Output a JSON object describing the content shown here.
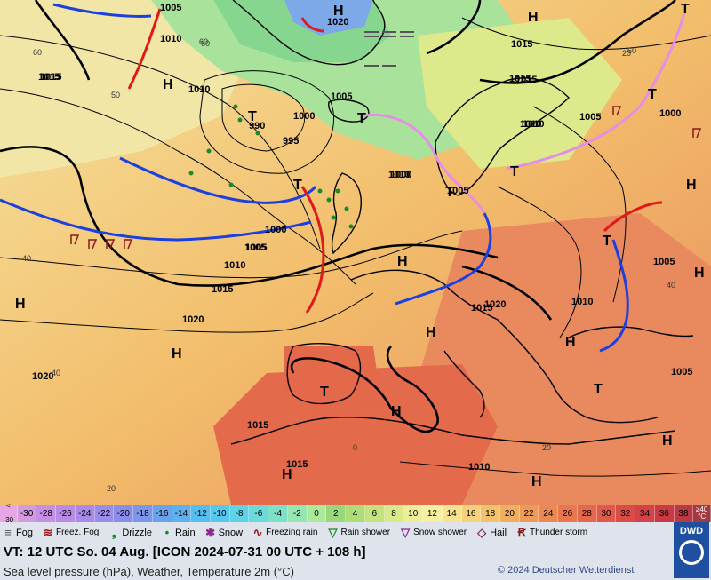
{
  "map": {
    "isobar_labels": [
      "1005",
      "1010",
      "1020",
      "1015",
      "1015",
      "1010",
      "1005",
      "1000",
      "995",
      "990",
      "1020",
      "1015",
      "1010",
      "1005",
      "1000",
      "1000",
      "1005",
      "1010",
      "1015",
      "1020",
      "1020",
      "1015",
      "1010",
      "1015",
      "1015",
      "1005",
      "1010",
      "1005",
      "1015",
      "1010",
      "1005",
      "1010",
      "1000",
      "1005",
      "1015"
    ],
    "centers": [
      "H",
      "H",
      "H",
      "H",
      "H",
      "H",
      "H",
      "H",
      "H",
      "H",
      "H",
      "H",
      "H",
      "H",
      "T",
      "T",
      "T",
      "T",
      "T",
      "T",
      "T",
      "T",
      "T",
      "T"
    ],
    "temp_labels": [
      "60",
      "60",
      "50",
      "40",
      "40",
      "20",
      "20",
      "0",
      "20",
      "40",
      "60",
      "60"
    ],
    "colors": {
      "fog_sea": "#bfeacd",
      "cold_front": "#1c3fe0",
      "warm_front": "#e01818",
      "occlusion": "#e68de8",
      "land_border": "#000000"
    }
  },
  "scale": {
    "first": [
      "<",
      "-30"
    ],
    "values": [
      "-30",
      "-28",
      "-26",
      "-24",
      "-22",
      "-20",
      "-18",
      "-16",
      "-14",
      "-12",
      "-10",
      "-8",
      "-6",
      "-4",
      "-2",
      "0",
      "2",
      "4",
      "6",
      "8",
      "10",
      "12",
      "14",
      "16",
      "18",
      "20",
      "22",
      "24",
      "26",
      "28",
      "30",
      "32",
      "34",
      "36",
      "38"
    ],
    "last": [
      "≥40",
      "°C"
    ],
    "colors": [
      "#d29be0",
      "#c58fe4",
      "#b88be6",
      "#a88ae8",
      "#9b8ce8",
      "#8a8ee8",
      "#7a97ea",
      "#6aa3ec",
      "#5eb0ee",
      "#56bdf0",
      "#56c8ee",
      "#5ed2e6",
      "#6cdad8",
      "#7ee0c6",
      "#96e6b2",
      "#aaea9a",
      "#9ad67a",
      "#aedd78",
      "#c4e37e",
      "#dae98a",
      "#ecef98",
      "#f6f0a0",
      "#f7e28e",
      "#f6d27c",
      "#f4c16c",
      "#f2ae60",
      "#ef9a58",
      "#ec8852",
      "#e8774e",
      "#e4684c",
      "#df5a4a",
      "#d94c48",
      "#d24246",
      "#c93a44",
      "#b73a44"
    ]
  },
  "legend": {
    "items": [
      {
        "icon": "fog-icon",
        "label": "Fog"
      },
      {
        "icon": "freezing-fog-icon",
        "label": "Freez. Fog"
      },
      {
        "icon": "drizzle-icon",
        "label": "Drizzle"
      },
      {
        "icon": "rain-icon",
        "label": "Rain"
      },
      {
        "icon": "snow-icon",
        "label": "Snow"
      },
      {
        "icon": "freezing-rain-icon",
        "label": "Freezing rain"
      },
      {
        "icon": "rain-shower-icon",
        "label": "Rain shower"
      },
      {
        "icon": "snow-shower-icon",
        "label": "Snow shower"
      },
      {
        "icon": "hail-icon",
        "label": "Hail"
      },
      {
        "icon": "thunderstorm-icon",
        "label": "Thunder storm"
      }
    ]
  },
  "footer": {
    "valid_time": "VT: 12 UTC So.  04 Aug. [ICON 2024-07-31  00 UTC + 108 h]",
    "description": "Sea level pressure (hPa), Weather, Temperature 2m (°C)",
    "copyright": "© 2024 Deutscher Wetterdienst",
    "logo_text": "DWD"
  }
}
